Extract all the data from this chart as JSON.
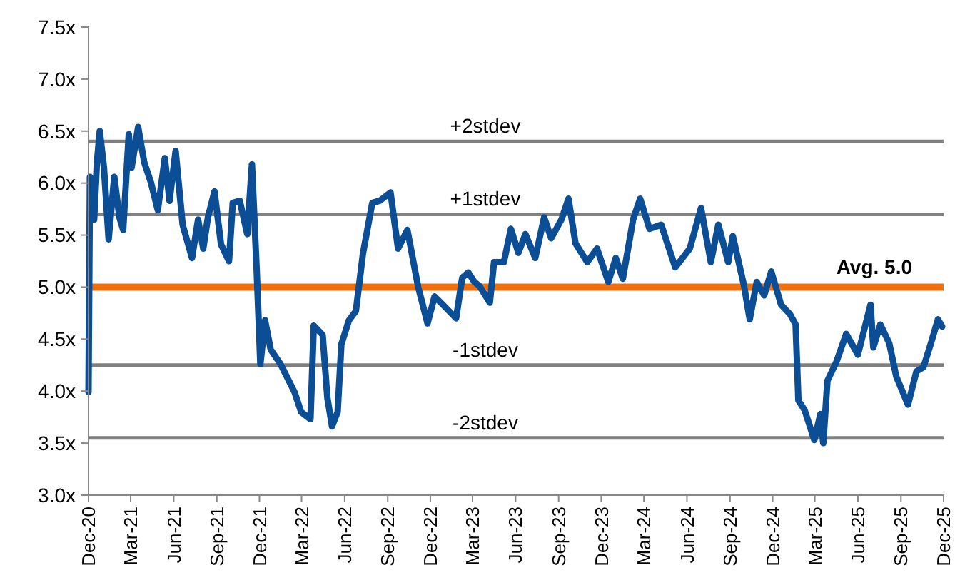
{
  "chart_data": {
    "type": "line",
    "x": [
      "2020-12-01",
      "2020-12-04",
      "2020-12-13",
      "2020-12-19",
      "2020-12-25",
      "2021-01-03",
      "2021-01-13",
      "2021-01-25",
      "2021-02-05",
      "2021-02-13",
      "2021-02-25",
      "2021-03-03",
      "2021-03-17",
      "2021-03-30",
      "2021-04-13",
      "2021-04-28",
      "2021-05-13",
      "2021-05-23",
      "2021-06-05",
      "2021-06-20",
      "2021-07-10",
      "2021-07-23",
      "2021-08-03",
      "2021-08-13",
      "2021-08-27",
      "2021-09-10",
      "2021-09-27",
      "2021-10-05",
      "2021-10-20",
      "2021-11-05",
      "2021-11-15",
      "2021-11-25",
      "2021-12-03",
      "2021-12-13",
      "2021-12-25",
      "2022-01-15",
      "2022-02-04",
      "2022-02-14",
      "2022-02-28",
      "2022-03-20",
      "2022-03-27",
      "2022-04-15",
      "2022-04-25",
      "2022-05-05",
      "2022-05-17",
      "2022-05-25",
      "2022-06-10",
      "2022-06-25",
      "2022-07-10",
      "2022-07-30",
      "2022-08-15",
      "2022-09-07",
      "2022-09-23",
      "2022-10-13",
      "2022-11-05",
      "2022-11-25",
      "2022-12-10",
      "2022-12-30",
      "2023-01-25",
      "2023-02-07",
      "2023-02-20",
      "2023-03-05",
      "2023-03-16",
      "2023-04-07",
      "2023-04-16",
      "2023-05-07",
      "2023-05-22",
      "2023-06-07",
      "2023-06-22",
      "2023-07-13",
      "2023-08-01",
      "2023-08-16",
      "2023-09-07",
      "2023-09-22",
      "2023-10-07",
      "2023-11-01",
      "2023-11-22",
      "2023-12-16",
      "2024-01-01",
      "2024-01-16",
      "2024-02-07",
      "2024-02-22",
      "2024-03-13",
      "2024-04-07",
      "2024-05-07",
      "2024-06-07",
      "2024-07-01",
      "2024-07-22",
      "2024-08-07",
      "2024-08-28",
      "2024-09-07",
      "2024-10-01",
      "2024-10-13",
      "2024-10-28",
      "2024-11-13",
      "2024-11-28",
      "2024-12-19",
      "2025-01-07",
      "2025-01-19",
      "2025-01-25",
      "2025-02-07",
      "2025-02-28",
      "2025-03-13",
      "2025-03-19",
      "2025-03-28",
      "2025-04-16",
      "2025-05-07",
      "2025-06-01",
      "2025-06-28",
      "2025-07-04",
      "2025-07-19",
      "2025-08-07",
      "2025-08-22",
      "2025-09-16",
      "2025-10-04",
      "2025-10-19",
      "2025-11-04",
      "2025-11-19",
      "2025-11-28"
    ],
    "series": [
      {
        "color": "#0b4e96",
        "values": [
          3.99,
          6.06,
          5.65,
          6.2,
          6.5,
          6.15,
          5.46,
          6.06,
          5.67,
          5.55,
          6.47,
          6.15,
          6.54,
          6.2,
          6.01,
          5.74,
          6.24,
          5.83,
          6.31,
          5.6,
          5.28,
          5.65,
          5.37,
          5.67,
          5.92,
          5.41,
          5.25,
          5.81,
          5.83,
          5.51,
          6.18,
          5.18,
          4.26,
          4.68,
          4.4,
          4.26,
          4.08,
          3.99,
          3.8,
          3.73,
          4.63,
          4.54,
          3.94,
          3.66,
          3.8,
          4.45,
          4.68,
          4.77,
          5.32,
          5.81,
          5.83,
          5.91,
          5.37,
          5.55,
          5.0,
          4.65,
          4.91,
          4.82,
          4.7,
          5.09,
          5.14,
          5.05,
          5.01,
          4.85,
          5.24,
          5.24,
          5.56,
          5.33,
          5.51,
          5.28,
          5.67,
          5.47,
          5.65,
          5.85,
          5.42,
          5.24,
          5.37,
          5.05,
          5.28,
          5.08,
          5.65,
          5.85,
          5.56,
          5.6,
          5.19,
          5.37,
          5.76,
          5.24,
          5.6,
          5.24,
          5.49,
          5.01,
          4.69,
          5.05,
          4.92,
          5.15,
          4.83,
          4.74,
          4.64,
          3.91,
          3.82,
          3.53,
          3.78,
          3.5,
          4.1,
          4.28,
          4.55,
          4.35,
          4.83,
          4.42,
          4.64,
          4.46,
          4.14,
          3.87,
          4.19,
          4.23,
          4.46,
          4.69,
          4.62
        ]
      }
    ],
    "xlim": [
      "2020-12-01",
      "2025-12-01"
    ],
    "xticks": [
      {
        "value": "2020-12-01",
        "label": "Dec-20"
      },
      {
        "value": "2021-03-01",
        "label": "Mar-21"
      },
      {
        "value": "2021-06-01",
        "label": "Jun-21"
      },
      {
        "value": "2021-09-01",
        "label": "Sep-21"
      },
      {
        "value": "2021-12-01",
        "label": "Dec-21"
      },
      {
        "value": "2022-03-01",
        "label": "Mar-22"
      },
      {
        "value": "2022-06-01",
        "label": "Jun-22"
      },
      {
        "value": "2022-09-01",
        "label": "Sep-22"
      },
      {
        "value": "2022-12-01",
        "label": "Dec-22"
      },
      {
        "value": "2023-03-01",
        "label": "Mar-23"
      },
      {
        "value": "2023-06-01",
        "label": "Jun-23"
      },
      {
        "value": "2023-09-01",
        "label": "Sep-23"
      },
      {
        "value": "2023-12-01",
        "label": "Dec-23"
      },
      {
        "value": "2024-03-01",
        "label": "Mar-24"
      },
      {
        "value": "2024-06-01",
        "label": "Jun-24"
      },
      {
        "value": "2024-09-01",
        "label": "Sep-24"
      },
      {
        "value": "2024-12-01",
        "label": "Dec-24"
      },
      {
        "value": "2025-03-01",
        "label": "Mar-25"
      },
      {
        "value": "2025-06-01",
        "label": "Jun-25"
      },
      {
        "value": "2025-09-01",
        "label": "Sep-25"
      },
      {
        "value": "2025-12-01",
        "label": "Dec-25"
      }
    ],
    "ylim": [
      3.0,
      7.5
    ],
    "yticks": [
      {
        "value": 3.0,
        "label": "3.0x"
      },
      {
        "value": 3.5,
        "label": "3.5x"
      },
      {
        "value": 4.0,
        "label": "4.0x"
      },
      {
        "value": 4.5,
        "label": "4.5x"
      },
      {
        "value": 5.0,
        "label": "5.0x"
      },
      {
        "value": 5.5,
        "label": "5.5x"
      },
      {
        "value": 6.0,
        "label": "6.0x"
      },
      {
        "value": 6.5,
        "label": "6.5x"
      },
      {
        "value": 7.0,
        "label": "7.0x"
      },
      {
        "value": 7.5,
        "label": "7.5x"
      }
    ],
    "ref_lines": [
      {
        "axis": "y",
        "value": 6.4,
        "label": "+2stdev",
        "color": "#808080"
      },
      {
        "axis": "y",
        "value": 5.7,
        "label": "+1stdev",
        "color": "#808080"
      },
      {
        "axis": "y",
        "value": 5.0,
        "label": "Avg. 5.0",
        "color": "#f07010",
        "line_style": "solid"
      },
      {
        "axis": "y",
        "value": 4.25,
        "label": "-1stdev",
        "color": "#808080"
      },
      {
        "axis": "y",
        "value": 3.55,
        "label": "-2stdev",
        "color": "#808080"
      }
    ],
    "line_style": "solid",
    "marker": "none"
  }
}
